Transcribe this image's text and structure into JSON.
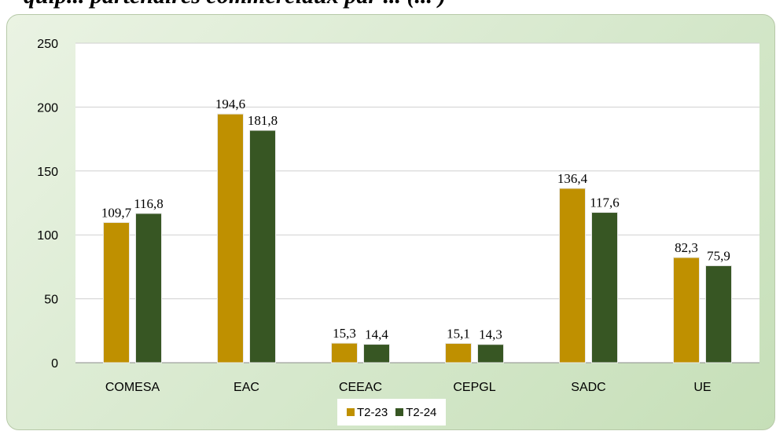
{
  "title_fragment": "quip... partenaires commerciaux par ... (... )",
  "chart_data": {
    "type": "bar",
    "categories": [
      "COMESA",
      "EAC",
      "CEEAC",
      "CEPGL",
      "SADC",
      "UE"
    ],
    "series": [
      {
        "name": "T2-23",
        "values": [
          109.7,
          194.6,
          15.3,
          15.1,
          136.4,
          82.3
        ],
        "labels": [
          "109,7",
          "194,6",
          "15,3",
          "15,1",
          "136,4",
          "82,3"
        ],
        "color": "#bf9000"
      },
      {
        "name": "T2-24",
        "values": [
          116.8,
          181.8,
          14.4,
          14.3,
          117.6,
          75.9
        ],
        "labels": [
          "116,8",
          "181,8",
          "14,4",
          "14,3",
          "117,6",
          "75,9"
        ],
        "color": "#375623"
      }
    ],
    "y_ticks": [
      "0",
      "50",
      "100",
      "150",
      "200",
      "250"
    ],
    "ylim": [
      0,
      250
    ],
    "grid": true,
    "legend": "bottom-center",
    "background": "#dcebd3"
  }
}
